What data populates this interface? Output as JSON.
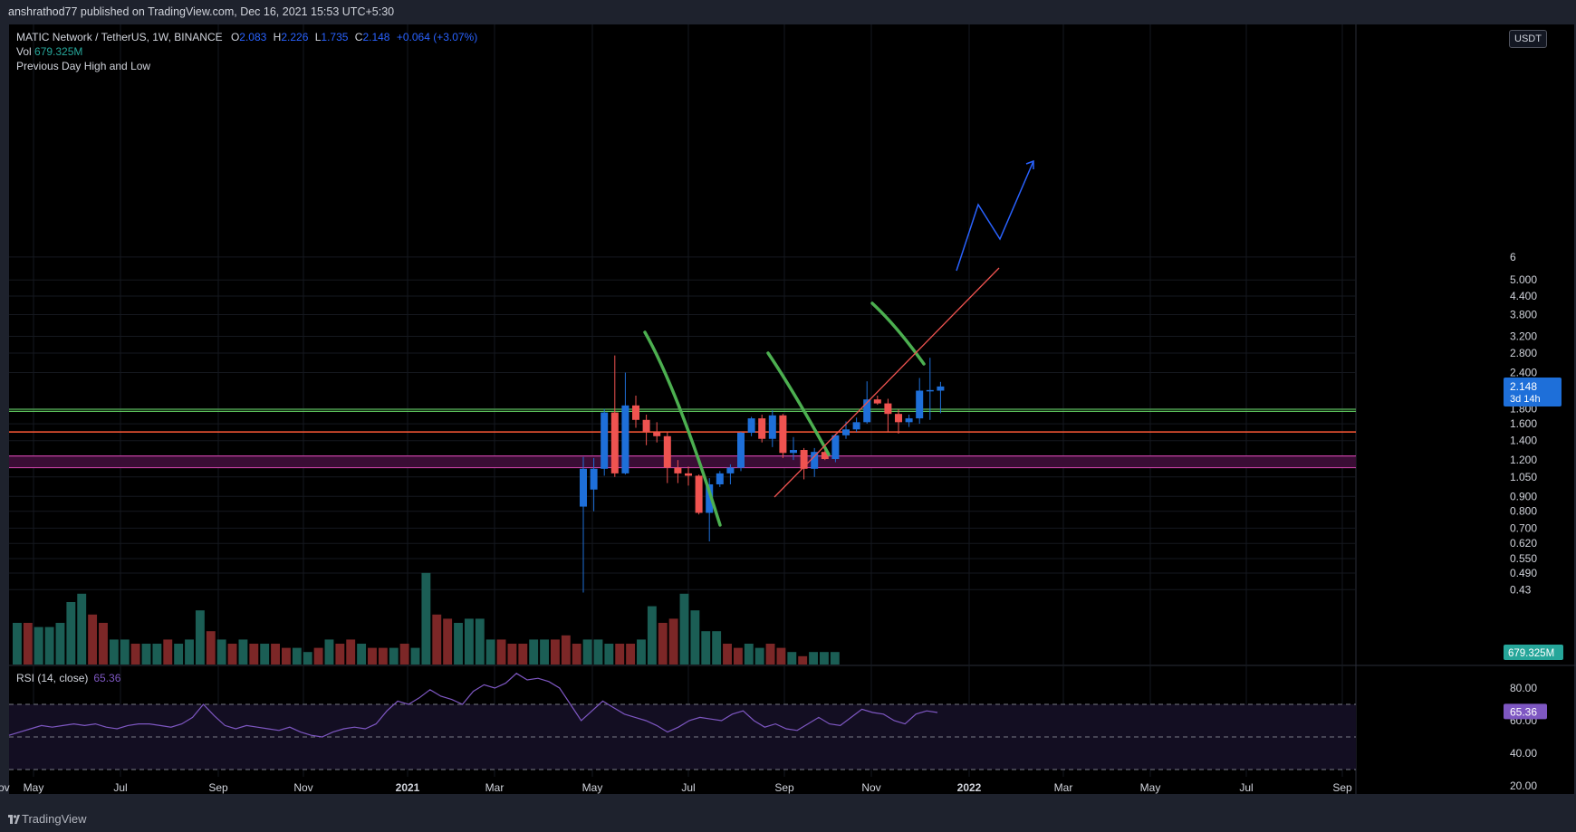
{
  "header": {
    "published_text": "anshrathod77 published on TradingView.com, Dec 16, 2021 15:53 UTC+5:30"
  },
  "legend": {
    "symbol": "MATIC Network / TetherUS, 1W, BINANCE",
    "open_label": "O",
    "open": "2.083",
    "high_label": "H",
    "high": "2.226",
    "low_label": "L",
    "low": "1.735",
    "close_label": "C",
    "close": "2.148",
    "change": "+0.064 (+3.07%)",
    "vol_label": "Vol",
    "vol_value": "679.325M",
    "indicator": "Previous Day High and Low"
  },
  "currency_badge": "USDT",
  "price_badge": {
    "price": "2.148",
    "countdown": "3d 14h"
  },
  "volume_badge": "679.325M",
  "rsi": {
    "label": "RSI (14, close)",
    "value": "65.36",
    "ticks": [
      "80.00",
      "60.00",
      "40.00",
      "20.00"
    ],
    "bands": [
      70,
      50,
      30
    ]
  },
  "footer": {
    "brand": "TradingView"
  },
  "colors": {
    "up": "#1e6fd9",
    "down": "#ef5350",
    "vol_up": "#1b5e55",
    "vol_down": "#7c2727",
    "rsi": "#7e57c2",
    "support_green": "#5cc25c",
    "support_red": "#ff5a36",
    "zone": "#c040a0",
    "trend": "#ef5350",
    "arrow": "#2962ff",
    "curve": "#4caf50"
  },
  "chart_data": {
    "type": "candlestick",
    "title": "MATIC Network / TetherUS, 1W, BINANCE",
    "y_scale": "log",
    "price_ticks": [
      "6",
      "5.000",
      "4.400",
      "3.800",
      "3.200",
      "2.800",
      "2.400",
      "1.800",
      "1.600",
      "1.400",
      "1.200",
      "1.050",
      "0.900",
      "0.800",
      "0.700",
      "0.620",
      "0.550",
      "0.490",
      "0.43"
    ],
    "x_labels": [
      "May",
      "Jul",
      "Sep",
      "Nov",
      "2021",
      "Mar",
      "May",
      "Jul",
      "Sep",
      "Nov",
      "2022",
      "Mar",
      "May",
      "Jul",
      "Sep",
      "Nov"
    ],
    "candles": [
      {
        "o": 0.83,
        "h": 1.23,
        "l": 0.42,
        "c": 1.12
      },
      {
        "o": 0.95,
        "h": 1.22,
        "l": 0.8,
        "c": 1.12
      },
      {
        "o": 1.12,
        "h": 1.8,
        "l": 1.06,
        "c": 1.75
      },
      {
        "o": 1.75,
        "h": 2.75,
        "l": 1.05,
        "c": 1.08
      },
      {
        "o": 1.08,
        "h": 2.4,
        "l": 1.07,
        "c": 1.85
      },
      {
        "o": 1.85,
        "h": 2.0,
        "l": 1.55,
        "c": 1.65
      },
      {
        "o": 1.65,
        "h": 1.72,
        "l": 1.35,
        "c": 1.5
      },
      {
        "o": 1.5,
        "h": 1.62,
        "l": 1.38,
        "c": 1.45
      },
      {
        "o": 1.45,
        "h": 1.5,
        "l": 1.0,
        "c": 1.13
      },
      {
        "o": 1.13,
        "h": 1.2,
        "l": 1.0,
        "c": 1.08
      },
      {
        "o": 1.08,
        "h": 1.14,
        "l": 0.98,
        "c": 1.06
      },
      {
        "o": 1.06,
        "h": 1.07,
        "l": 0.78,
        "c": 0.79
      },
      {
        "o": 0.79,
        "h": 1.04,
        "l": 0.63,
        "c": 0.99
      },
      {
        "o": 0.99,
        "h": 1.1,
        "l": 0.97,
        "c": 1.08
      },
      {
        "o": 1.08,
        "h": 1.16,
        "l": 0.99,
        "c": 1.13
      },
      {
        "o": 1.13,
        "h": 1.5,
        "l": 1.1,
        "c": 1.49
      },
      {
        "o": 1.49,
        "h": 1.69,
        "l": 1.45,
        "c": 1.67
      },
      {
        "o": 1.67,
        "h": 1.72,
        "l": 1.38,
        "c": 1.42
      },
      {
        "o": 1.42,
        "h": 1.78,
        "l": 1.33,
        "c": 1.71
      },
      {
        "o": 1.71,
        "h": 1.73,
        "l": 1.22,
        "c": 1.27
      },
      {
        "o": 1.27,
        "h": 1.44,
        "l": 1.2,
        "c": 1.3
      },
      {
        "o": 1.3,
        "h": 1.32,
        "l": 1.03,
        "c": 1.12
      },
      {
        "o": 1.12,
        "h": 1.32,
        "l": 1.05,
        "c": 1.28
      },
      {
        "o": 1.28,
        "h": 1.35,
        "l": 1.2,
        "c": 1.21
      },
      {
        "o": 1.21,
        "h": 1.48,
        "l": 1.18,
        "c": 1.46
      },
      {
        "o": 1.46,
        "h": 1.63,
        "l": 1.42,
        "c": 1.53
      },
      {
        "o": 1.53,
        "h": 1.68,
        "l": 1.5,
        "c": 1.62
      },
      {
        "o": 1.62,
        "h": 2.24,
        "l": 1.6,
        "c": 1.94
      },
      {
        "o": 1.94,
        "h": 2.0,
        "l": 1.86,
        "c": 1.88
      },
      {
        "o": 1.88,
        "h": 1.95,
        "l": 1.5,
        "c": 1.73
      },
      {
        "o": 1.73,
        "h": 1.79,
        "l": 1.48,
        "c": 1.62
      },
      {
        "o": 1.62,
        "h": 1.72,
        "l": 1.56,
        "c": 1.67
      },
      {
        "o": 1.67,
        "h": 2.3,
        "l": 1.6,
        "c": 2.08
      },
      {
        "o": 2.08,
        "h": 2.7,
        "l": 1.65,
        "c": 2.09
      },
      {
        "o": 2.08,
        "h": 2.23,
        "l": 1.74,
        "c": 2.15
      }
    ],
    "volume": {
      "values": [
        1.0,
        1.0,
        0.9,
        0.9,
        1.0,
        1.5,
        1.7,
        1.2,
        1.0,
        0.6,
        0.6,
        0.5,
        0.5,
        0.5,
        0.6,
        0.5,
        0.6,
        1.3,
        0.8,
        0.6,
        0.5,
        0.6,
        0.5,
        0.5,
        0.5,
        0.4,
        0.4,
        0.3,
        0.4,
        0.6,
        0.5,
        0.6,
        0.5,
        0.4,
        0.4,
        0.4,
        0.5,
        0.4,
        2.2,
        1.2,
        1.1,
        1.0,
        1.1,
        1.1,
        0.6,
        0.6,
        0.5,
        0.5,
        0.6,
        0.6,
        0.6,
        0.7,
        0.5,
        0.6,
        0.6,
        0.5,
        0.5,
        0.5,
        0.6,
        1.4,
        1.0,
        1.1,
        1.7,
        1.3,
        0.8,
        0.8,
        0.5,
        0.4,
        0.5,
        0.4,
        0.5,
        0.4,
        0.3,
        0.2,
        0.3,
        0.3,
        0.3
      ],
      "up": [
        true,
        false,
        true,
        true,
        true,
        true,
        true,
        false,
        false,
        true,
        true,
        false,
        true,
        true,
        false,
        true,
        true,
        true,
        false,
        true,
        false,
        true,
        false,
        true,
        false,
        false,
        true,
        true,
        false,
        true,
        false,
        false,
        true,
        false,
        false,
        true,
        false,
        true,
        true,
        false,
        false,
        true,
        true,
        true,
        true,
        false,
        false,
        false,
        true,
        true,
        false,
        false,
        false,
        true,
        true,
        true,
        false,
        false,
        true,
        true,
        false,
        false,
        true,
        true,
        true,
        true,
        false,
        false,
        true,
        true,
        false,
        false,
        true,
        false,
        true,
        true,
        true
      ]
    },
    "rsi_series": [
      51,
      53,
      55,
      57,
      56,
      57,
      58,
      57,
      58,
      56,
      55,
      57,
      58,
      58,
      57,
      56,
      58,
      62,
      70,
      63,
      57,
      55,
      57,
      56,
      55,
      54,
      56,
      53,
      51,
      50,
      53,
      55,
      56,
      55,
      58,
      66,
      72,
      70,
      74,
      79,
      75,
      73,
      70,
      78,
      82,
      80,
      83,
      89,
      85,
      86,
      84,
      80,
      70,
      60,
      66,
      72,
      68,
      64,
      62,
      60,
      57,
      53,
      56,
      60,
      62,
      61,
      60,
      64,
      66,
      60,
      56,
      58,
      55,
      54,
      58,
      62,
      58,
      57,
      62,
      67,
      65,
      64,
      60,
      58,
      64,
      66,
      65
    ]
  }
}
